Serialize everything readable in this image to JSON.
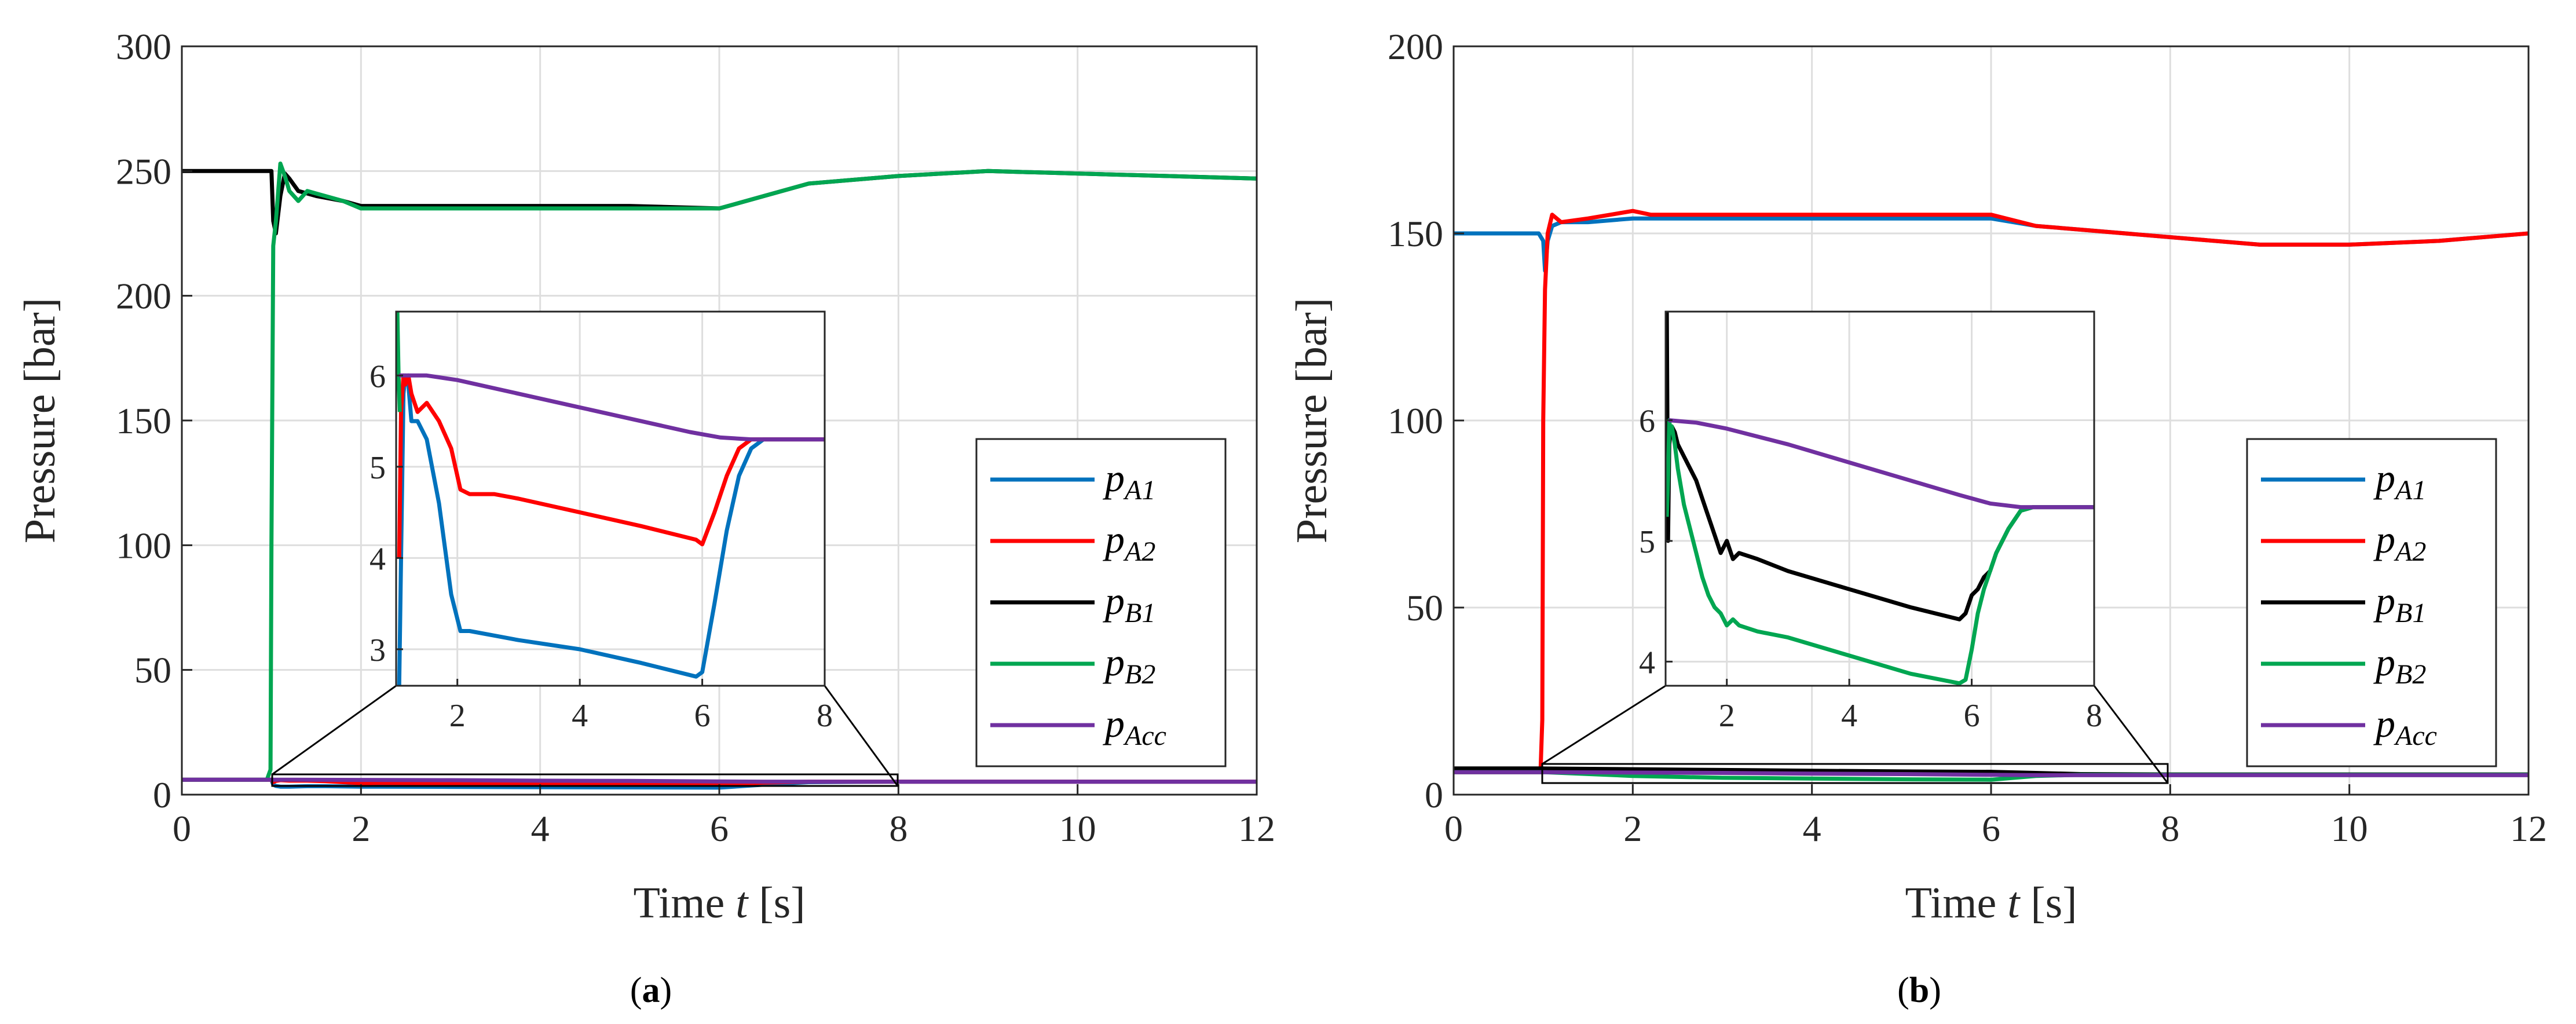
{
  "panels": [
    {
      "caption_open": "(",
      "caption": "a",
      "caption_close": ")"
    },
    {
      "caption_open": "(",
      "caption": "b",
      "caption_close": ")"
    }
  ],
  "chart_data": [
    {
      "type": "line",
      "title": "",
      "xlabel": "Time t [s]",
      "xlabel_pre": "Time",
      "xlabel_var": "t",
      "xlabel_unit": "[s]",
      "ylabel": "Pressure [bar]",
      "xlim": [
        0,
        12
      ],
      "ylim": [
        0,
        300
      ],
      "xticks": [
        0,
        2,
        4,
        6,
        8,
        10,
        12
      ],
      "yticks": [
        0,
        50,
        100,
        150,
        200,
        250,
        300
      ],
      "grid": true,
      "legend_position": "right",
      "series": [
        {
          "name": "pA1",
          "sym": "p",
          "sub": "A1",
          "color": "#0072BD",
          "x": [
            0,
            1,
            1.02,
            1.05,
            1.1,
            1.2,
            1.4,
            1.6,
            2,
            2.2,
            3,
            4,
            5,
            6,
            6.5,
            7,
            8,
            9,
            10,
            11,
            12
          ],
          "y": [
            6,
            6,
            4,
            3.5,
            3.2,
            3.2,
            3.4,
            3.4,
            3.2,
            3.2,
            3.1,
            3,
            2.9,
            2.8,
            4,
            5,
            5.2,
            5.2,
            5.2,
            5.2,
            5.2
          ]
        },
        {
          "name": "pA2",
          "sym": "p",
          "sub": "A2",
          "color": "#FF0000",
          "x": [
            0,
            1,
            1.02,
            1.05,
            1.1,
            1.2,
            1.4,
            1.6,
            2,
            2.2,
            3,
            4,
            5,
            6,
            6.5,
            7,
            8,
            9,
            10,
            11,
            12
          ],
          "y": [
            6,
            6,
            5,
            5.5,
            5.8,
            5.6,
            5.6,
            5.4,
            4.6,
            4.7,
            4.6,
            4.4,
            4.3,
            4.1,
            4.8,
            5.2,
            5.2,
            5.2,
            5.2,
            5.2,
            5.2
          ]
        },
        {
          "name": "pB1",
          "sym": "p",
          "sub": "B1",
          "color": "#000000",
          "x": [
            0,
            0.95,
            1.0,
            1.02,
            1.05,
            1.1,
            1.15,
            1.2,
            1.3,
            1.5,
            1.8,
            2.0,
            2.5,
            3,
            4,
            5,
            6,
            6.5,
            7,
            8,
            9,
            10,
            11,
            12
          ],
          "y": [
            250,
            250,
            250,
            230,
            225,
            240,
            249,
            247,
            242,
            240,
            238,
            236,
            236,
            236,
            236,
            236,
            235,
            240,
            245,
            248,
            250,
            249,
            248,
            247
          ]
        },
        {
          "name": "pB2",
          "sym": "p",
          "sub": "B2",
          "color": "#00A651",
          "x": [
            0,
            0.95,
            0.97,
            0.99,
            1.0,
            1.02,
            1.05,
            1.1,
            1.15,
            1.2,
            1.3,
            1.4,
            1.5,
            1.8,
            2.0,
            2.5,
            3,
            4,
            5,
            6,
            6.5,
            7,
            8,
            9,
            10,
            11,
            12
          ],
          "y": [
            6,
            6,
            8,
            10,
            100,
            220,
            230,
            253,
            248,
            242,
            238,
            242,
            241,
            238,
            235,
            235,
            235,
            235,
            235,
            235,
            240,
            245,
            248,
            250,
            249,
            248,
            247
          ]
        },
        {
          "name": "pAcc",
          "sym": "p",
          "sub": "Acc",
          "color": "#7030A0",
          "x": [
            0,
            1,
            2,
            3,
            4,
            5,
            6,
            6.5,
            7,
            8,
            9,
            10,
            11,
            12
          ],
          "y": [
            6,
            6,
            5.9,
            5.8,
            5.6,
            5.5,
            5.3,
            5.2,
            5.2,
            5.2,
            5.2,
            5.2,
            5.2,
            5.2
          ]
        }
      ],
      "inset": {
        "xlim": [
          1,
          8
        ],
        "ylim": [
          2.6,
          6.7
        ],
        "xticks": [
          2,
          4,
          6,
          8
        ],
        "yticks": [
          3,
          4,
          5,
          6
        ],
        "source_box_x": [
          1,
          8
        ],
        "source_box_y": [
          2.6,
          6.7
        ],
        "series": [
          {
            "name": "pA1",
            "color": "#0072BD",
            "x": [
              1.05,
              1.08,
              1.12,
              1.15,
              1.2,
              1.25,
              1.35,
              1.5,
              1.7,
              1.9,
              2.05,
              2.2,
              2.6,
              3,
              4,
              5,
              5.9,
              6.0,
              6.2,
              6.4,
              6.6,
              6.8,
              7,
              8
            ],
            "y": [
              2.6,
              4.0,
              5.8,
              6.0,
              5.9,
              5.5,
              5.5,
              5.3,
              4.6,
              3.6,
              3.2,
              3.2,
              3.15,
              3.1,
              3.0,
              2.85,
              2.7,
              2.75,
              3.5,
              4.3,
              4.9,
              5.2,
              5.3,
              5.3
            ]
          },
          {
            "name": "pA2",
            "color": "#FF0000",
            "x": [
              1.05,
              1.08,
              1.12,
              1.15,
              1.2,
              1.25,
              1.35,
              1.5,
              1.7,
              1.9,
              2.05,
              2.2,
              2.6,
              3,
              4,
              5,
              5.9,
              6.0,
              6.2,
              6.4,
              6.6,
              6.8,
              7,
              8
            ],
            "y": [
              4.0,
              5.6,
              6.0,
              5.9,
              6.0,
              5.8,
              5.6,
              5.7,
              5.5,
              5.2,
              4.75,
              4.7,
              4.7,
              4.65,
              4.5,
              4.35,
              4.2,
              4.15,
              4.5,
              4.9,
              5.2,
              5.3,
              5.3,
              5.3
            ]
          },
          {
            "name": "pB2",
            "color": "#00A651",
            "x": [
              1.02,
              1.04,
              1.06
            ],
            "y": [
              6.7,
              6.0,
              5.6
            ]
          },
          {
            "name": "pAcc",
            "color": "#7030A0",
            "x": [
              1.05,
              1.5,
              2,
              3,
              4,
              5,
              5.8,
              6.3,
              6.8,
              7,
              8
            ],
            "y": [
              6.0,
              6.0,
              5.95,
              5.8,
              5.65,
              5.5,
              5.38,
              5.32,
              5.3,
              5.3,
              5.3
            ]
          }
        ]
      }
    },
    {
      "type": "line",
      "title": "",
      "xlabel": "Time t [s]",
      "xlabel_pre": "Time",
      "xlabel_var": "t",
      "xlabel_unit": "[s]",
      "ylabel": "Pressure [bar]",
      "xlim": [
        0,
        12
      ],
      "ylim": [
        0,
        200
      ],
      "xticks": [
        0,
        2,
        4,
        6,
        8,
        10,
        12
      ],
      "yticks": [
        0,
        50,
        100,
        150,
        200
      ],
      "grid": true,
      "legend_position": "right",
      "series": [
        {
          "name": "pA1",
          "sym": "p",
          "sub": "A1",
          "color": "#0072BD",
          "x": [
            0,
            0.95,
            1.0,
            1.02,
            1.05,
            1.1,
            1.2,
            1.5,
            2,
            3,
            4,
            5,
            6,
            6.5,
            7,
            8,
            9,
            10,
            11,
            12
          ],
          "y": [
            150,
            150,
            148,
            140,
            148,
            152,
            153,
            153,
            154,
            154,
            154,
            154,
            154,
            152,
            151,
            149,
            147,
            147,
            148,
            150
          ]
        },
        {
          "name": "pA2",
          "sym": "p",
          "sub": "A2",
          "color": "#FF0000",
          "x": [
            0,
            0.97,
            0.99,
            1.0,
            1.02,
            1.05,
            1.1,
            1.2,
            1.5,
            2,
            2.2,
            3,
            4,
            5,
            6,
            6.5,
            7,
            8,
            9,
            10,
            11,
            12
          ],
          "y": [
            6,
            6,
            20,
            100,
            135,
            150,
            155,
            153,
            154,
            156,
            155,
            155,
            155,
            155,
            155,
            152,
            151,
            149,
            147,
            147,
            148,
            150
          ]
        },
        {
          "name": "pB1",
          "sym": "p",
          "sub": "B1",
          "color": "#000000",
          "x": [
            0,
            1,
            2,
            3,
            4,
            5,
            6,
            6.5,
            7,
            8,
            9,
            10,
            11,
            12
          ],
          "y": [
            7,
            7,
            6.8,
            6.6,
            6.4,
            6.2,
            6.1,
            5.8,
            5.5,
            5.4,
            5.4,
            5.4,
            5.4,
            5.4
          ]
        },
        {
          "name": "pB2",
          "sym": "p",
          "sub": "B2",
          "color": "#00A651",
          "x": [
            0,
            1,
            2,
            3,
            4,
            5,
            6,
            6.5,
            7,
            8,
            9,
            10,
            11,
            12
          ],
          "y": [
            6,
            6,
            5,
            4.5,
            4.3,
            4.1,
            4.0,
            5,
            5.3,
            5.3,
            5.3,
            5.3,
            5.3,
            5.3
          ]
        },
        {
          "name": "pAcc",
          "sym": "p",
          "sub": "Acc",
          "color": "#7030A0",
          "x": [
            0,
            1,
            2,
            3,
            4,
            5,
            6,
            6.5,
            7,
            8,
            9,
            10,
            11,
            12
          ],
          "y": [
            6,
            6,
            5.9,
            5.8,
            5.6,
            5.5,
            5.3,
            5.2,
            5.2,
            5.2,
            5.2,
            5.2,
            5.2,
            5.2
          ]
        }
      ],
      "inset": {
        "xlim": [
          1,
          8
        ],
        "ylim": [
          3.8,
          6.9
        ],
        "xticks": [
          2,
          4,
          6,
          8
        ],
        "yticks": [
          4,
          5,
          6
        ],
        "source_box_x": [
          1,
          8
        ],
        "source_box_y": [
          3.8,
          6.9
        ],
        "series": [
          {
            "name": "pB1",
            "color": "#000000",
            "x": [
              1.02,
              1.04,
              1.06,
              1.08,
              1.1,
              1.15,
              1.2,
              1.3,
              1.4,
              1.5,
              1.6,
              1.7,
              1.8,
              1.9,
              2.0,
              2.1,
              2.2,
              2.5,
              3,
              4,
              5,
              5.8,
              5.9,
              6.0,
              6.1,
              6.2,
              6.3,
              6.4,
              6.6,
              6.8,
              7,
              8
            ],
            "y": [
              6.9,
              5.0,
              5.8,
              5.9,
              5.95,
              5.9,
              5.8,
              5.7,
              5.6,
              5.5,
              5.35,
              5.2,
              5.05,
              4.9,
              5.0,
              4.85,
              4.9,
              4.85,
              4.75,
              4.6,
              4.45,
              4.35,
              4.4,
              4.55,
              4.6,
              4.7,
              4.75,
              4.9,
              5.1,
              5.25,
              5.28,
              5.28
            ]
          },
          {
            "name": "pB2",
            "color": "#00A651",
            "x": [
              1.02,
              1.04,
              1.06,
              1.08,
              1.1,
              1.15,
              1.2,
              1.3,
              1.4,
              1.5,
              1.6,
              1.7,
              1.8,
              1.9,
              2.0,
              2.1,
              2.2,
              2.5,
              3,
              4,
              5,
              5.8,
              5.9,
              6.0,
              6.1,
              6.2,
              6.4,
              6.6,
              6.8,
              7,
              8
            ],
            "y": [
              5.2,
              5.5,
              6.0,
              5.9,
              5.95,
              5.8,
              5.6,
              5.3,
              5.1,
              4.9,
              4.7,
              4.55,
              4.45,
              4.4,
              4.3,
              4.35,
              4.3,
              4.25,
              4.2,
              4.05,
              3.9,
              3.82,
              3.85,
              4.1,
              4.4,
              4.6,
              4.9,
              5.1,
              5.25,
              5.28,
              5.28
            ]
          },
          {
            "name": "pAcc",
            "color": "#7030A0",
            "x": [
              1.05,
              1.5,
              2,
              3,
              4,
              5,
              5.8,
              6.3,
              6.8,
              7,
              8
            ],
            "y": [
              6.0,
              5.98,
              5.93,
              5.8,
              5.65,
              5.5,
              5.38,
              5.31,
              5.28,
              5.28,
              5.28
            ]
          }
        ]
      }
    }
  ]
}
